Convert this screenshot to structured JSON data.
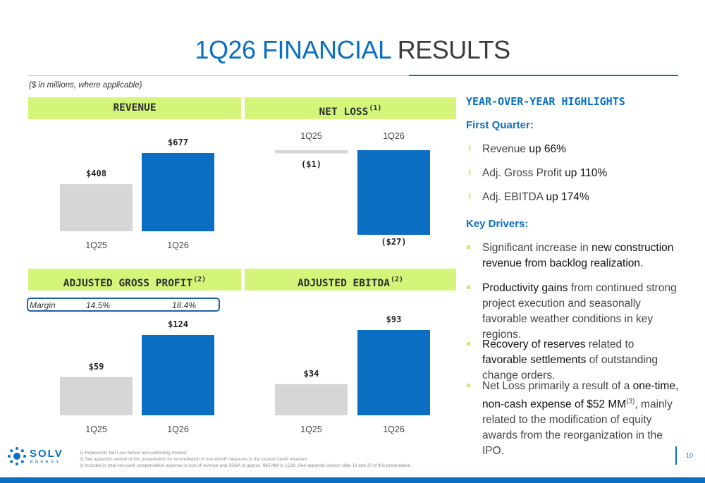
{
  "title": {
    "part1": "1Q26 FINANCIAL",
    "part2": "RESULTS"
  },
  "units_note": "($ in millions, where applicable)",
  "panels": {
    "revenue": {
      "title": "REVENUE",
      "sup": ""
    },
    "net_loss": {
      "title": "NET LOSS",
      "sup": "(1)"
    },
    "gross_profit": {
      "title": "ADJUSTED GROSS PROFIT",
      "sup": "(2)"
    },
    "ebitda": {
      "title": "ADJUSTED EBITDA",
      "sup": "(2)"
    }
  },
  "margin": {
    "label": "Margin",
    "q1": "14.5%",
    "q2": "18.4%"
  },
  "colors": {
    "prior": "#d6d6d6",
    "current": "#0a6fc2",
    "header_bg": "#d4f57a",
    "accent": "#0a6fc2"
  },
  "chart_data": [
    {
      "type": "bar",
      "title": "REVENUE",
      "categories": [
        "1Q25",
        "1Q26"
      ],
      "values": [
        408,
        677
      ],
      "labels": [
        "$408",
        "$677"
      ]
    },
    {
      "type": "bar",
      "title": "NET LOSS",
      "categories": [
        "1Q25",
        "1Q26"
      ],
      "values": [
        -1,
        -27
      ],
      "labels": [
        "($1)",
        "($27)"
      ]
    },
    {
      "type": "bar",
      "title": "ADJUSTED GROSS PROFIT",
      "categories": [
        "1Q25",
        "1Q26"
      ],
      "values": [
        59,
        124
      ],
      "labels": [
        "$59",
        "$124"
      ]
    },
    {
      "type": "bar",
      "title": "ADJUSTED EBITDA",
      "categories": [
        "1Q25",
        "1Q26"
      ],
      "values": [
        34,
        93
      ],
      "labels": [
        "$34",
        "$93"
      ]
    }
  ],
  "highlights": {
    "title": "YEAR-OVER-YEAR HIGHLIGHTS",
    "first_quarter_label": "First Quarter:",
    "items": [
      {
        "pre": "Revenue ",
        "bold": "up 66%"
      },
      {
        "pre": "Adj. Gross Profit ",
        "bold": "up 110%"
      },
      {
        "pre": "Adj. EBITDA ",
        "bold": "up 174%"
      }
    ],
    "drivers_label": "Key Drivers:",
    "drivers": {
      "d1_pre": "Significant increase in ",
      "d1_bold": "new construction revenue from backlog realization.",
      "d2_bold": "Productivity gains",
      "d2_post": " from continued strong project execution and seasonally favorable weather conditions in key regions.",
      "d3_bold1": "Recovery of reserves",
      "d3_mid": " related to ",
      "d3_bold2": "favorable settlements",
      "d3_post": " of outstanding change orders.",
      "d4_pre": "Net Loss primarily a result of a ",
      "d4_bold": "one-time, non-cash expense of $52 MM",
      "d4_sup": "(3)",
      "d4_post": ", mainly related to the modification of equity awards from the reorganization in the IPO."
    }
  },
  "footnotes": [
    "1)    Represents Net Loss before non-controlling interest",
    "2)    See appendix section of this presentation for reconciliation of non-GAAP measures to the closest GAAP measure",
    "3)    Included in total non-cash compensation expense in cost of revenue and SG&A of approx. $65 MM in 1Q26. See appendix section slide 19 and 20 of this presentation."
  ],
  "logo": {
    "word": "SOLV",
    "sub": "ENERGY",
    "icon": "solv-sun-icon"
  },
  "page_number": "10"
}
